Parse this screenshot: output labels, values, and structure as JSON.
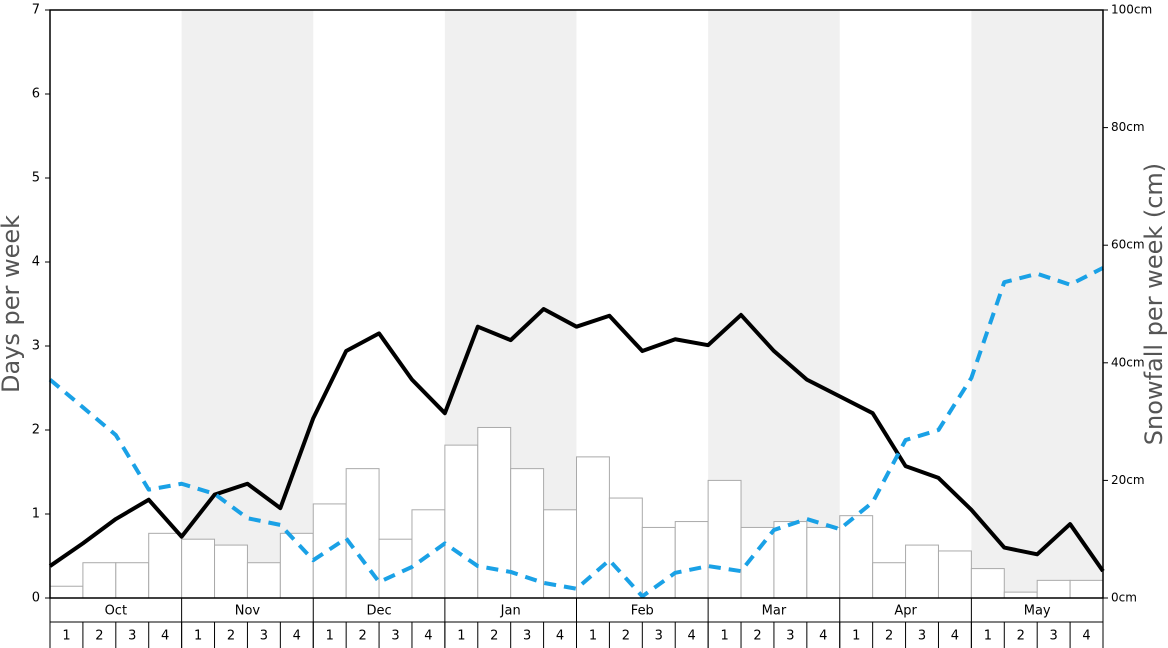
{
  "chart_data": {
    "type": "combo",
    "y_label": "Days per week",
    "y2_label": "Snowfall per week (cm)",
    "months": [
      "Oct",
      "Nov",
      "Dec",
      "Jan",
      "Feb",
      "Mar",
      "Apr",
      "May"
    ],
    "categories": [
      "1",
      "2",
      "3",
      "4",
      "1",
      "2",
      "3",
      "4",
      "1",
      "2",
      "3",
      "4",
      "1",
      "2",
      "3",
      "4",
      "1",
      "2",
      "3",
      "4",
      "1",
      "2",
      "3",
      "4",
      "1",
      "2",
      "3",
      "4",
      "1",
      "2",
      "3",
      "4"
    ],
    "x": [
      0,
      1,
      2,
      3,
      4,
      5,
      6,
      7,
      8,
      9,
      10,
      11,
      12,
      13,
      14,
      15,
      16,
      17,
      18,
      19,
      20,
      21,
      22,
      23,
      24,
      25,
      26,
      27,
      28,
      29,
      30,
      31,
      32
    ],
    "xlim": [
      0,
      32
    ],
    "ylim": [
      0,
      7
    ],
    "yticks": [
      0,
      1,
      2,
      3,
      4,
      5,
      6,
      7
    ],
    "y2lim": [
      0,
      100
    ],
    "y2ticks": [
      {
        "value": 0,
        "label": "0cm"
      },
      {
        "value": 20,
        "label": "20cm"
      },
      {
        "value": 40,
        "label": "40cm"
      },
      {
        "value": 60,
        "label": "60cm"
      },
      {
        "value": 80,
        "label": "80cm"
      },
      {
        "value": 100,
        "label": "100cm"
      }
    ],
    "band_color": "#f0f0f0",
    "series": [
      {
        "type": "bar",
        "axis": "y2",
        "color": "#ffffff",
        "edge": "#aaaaaa",
        "values": [
          2,
          6,
          6,
          11,
          10,
          9,
          6,
          11,
          16,
          22,
          10,
          15,
          26,
          29,
          22,
          15,
          24,
          17,
          12,
          13,
          20,
          12,
          13,
          12,
          14,
          6,
          9,
          8,
          5,
          1,
          3,
          3
        ]
      },
      {
        "type": "line",
        "color": "#000000",
        "dashed": false,
        "values": [
          0.38,
          0.65,
          0.94,
          1.17,
          0.73,
          1.23,
          1.36,
          1.07,
          2.14,
          2.94,
          3.15,
          2.6,
          2.2,
          3.23,
          3.07,
          3.44,
          3.23,
          3.36,
          2.94,
          3.08,
          3.01,
          3.37,
          2.94,
          2.6,
          2.4,
          2.2,
          1.57,
          1.43,
          1.05,
          0.6,
          0.52,
          0.88,
          0.32
        ]
      },
      {
        "type": "line",
        "color": "#1aa1e6",
        "dashed": true,
        "values": [
          2.6,
          2.27,
          1.94,
          1.29,
          1.36,
          1.24,
          0.95,
          0.87,
          0.45,
          0.71,
          0.19,
          0.37,
          0.65,
          0.38,
          0.31,
          0.18,
          0.11,
          0.45,
          0.02,
          0.3,
          0.38,
          0.32,
          0.81,
          0.94,
          0.82,
          1.14,
          1.88,
          2.0,
          2.62,
          3.76,
          3.86,
          3.73,
          3.93
        ]
      }
    ]
  }
}
